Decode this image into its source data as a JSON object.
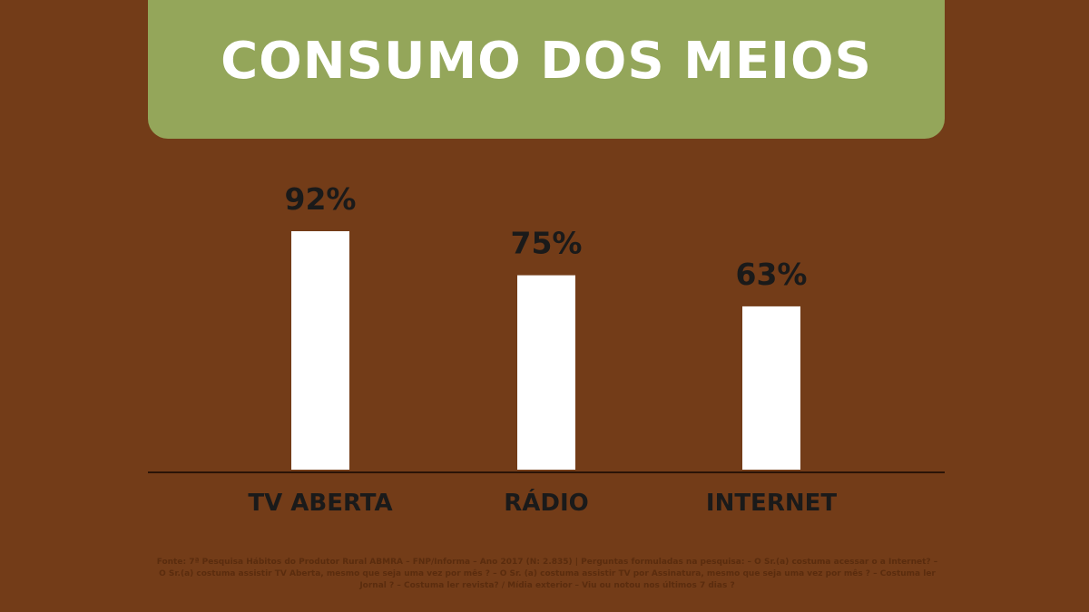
{
  "chart_data": {
    "type": "bar",
    "title": "CONSUMO DOS MEIOS",
    "categories": [
      "TV ABERTA",
      "RÁDIO",
      "INTERNET"
    ],
    "values": [
      92,
      75,
      63
    ],
    "value_labels": [
      "92%",
      "75%",
      "63%"
    ],
    "ylim": [
      0,
      100
    ],
    "grid": false,
    "colors": {
      "bar": "#ffffff",
      "background": "#733c18",
      "banner": "#94a65a"
    }
  },
  "source_note": "Fonte: 7ª Pesquisa Hábitos do Produtor Rural ABMRA – FNP/Informa – Ano 2017 (N: 2.835) | Perguntas formuladas na pesquisa: – O Sr.(a) costuma acessar o a Internet? –O Sr.(a) costuma assistir TV Aberta, mesmo que seja uma vez por mês ? – O Sr. (a) costuma assistir TV por Assinatura, mesmo que seja uma vez por mês ? – Costuma ler Jornal ? – Costuma ler revista? / Mídia exterior – Viu ou notou nos últimos 7 dias ?"
}
